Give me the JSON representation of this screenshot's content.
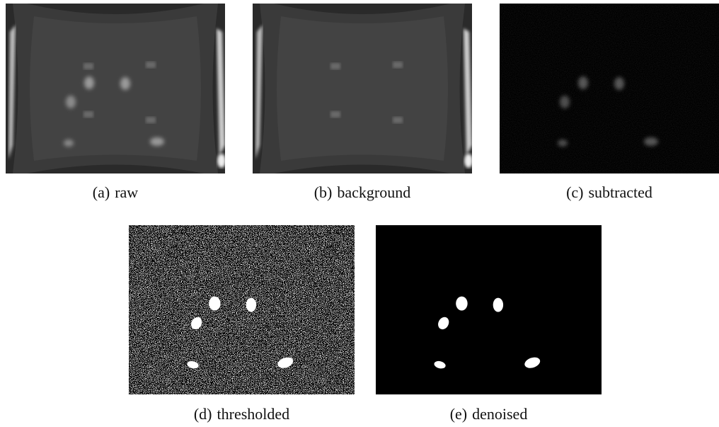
{
  "figure": {
    "panels": [
      {
        "label": "(a)",
        "caption": "raw"
      },
      {
        "label": "(b)",
        "caption": "background"
      },
      {
        "label": "(c)",
        "caption": "subtracted"
      },
      {
        "label": "(d)",
        "caption": "thresholded"
      },
      {
        "label": "(e)",
        "caption": "denoised"
      }
    ]
  }
}
